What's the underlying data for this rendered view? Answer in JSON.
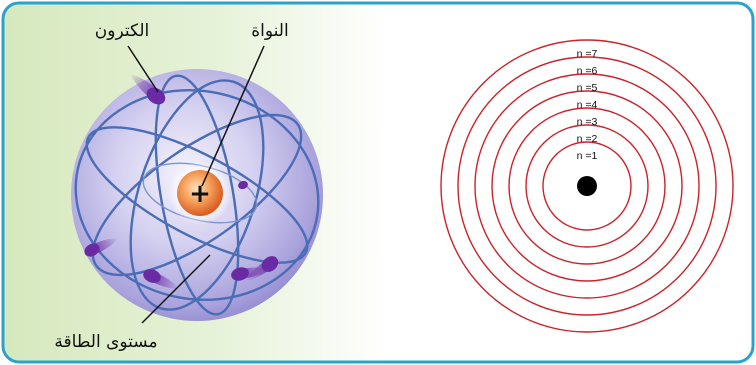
{
  "atom_model": {
    "labels": {
      "electron": "الكترون",
      "nucleus": "النواة",
      "energy_level": "مستوى الطاقة"
    },
    "nucleus_symbol": "+"
  },
  "energy_levels": {
    "levels": [
      {
        "label": "n =1"
      },
      {
        "label": "n =2"
      },
      {
        "label": "n =3"
      },
      {
        "label": "n =4"
      },
      {
        "label": "n =5"
      },
      {
        "label": "n =6"
      },
      {
        "label": "n =7"
      }
    ]
  },
  "colors": {
    "border": "#29a3cc",
    "panel_tint": "#d9ebc2",
    "sphere": "#9f98d8",
    "orbit": "#4b6db5",
    "electron": "#6a2aa3",
    "nucleus": "#e8702a",
    "level_circle": "#cc2229",
    "level_core": "#000000"
  }
}
